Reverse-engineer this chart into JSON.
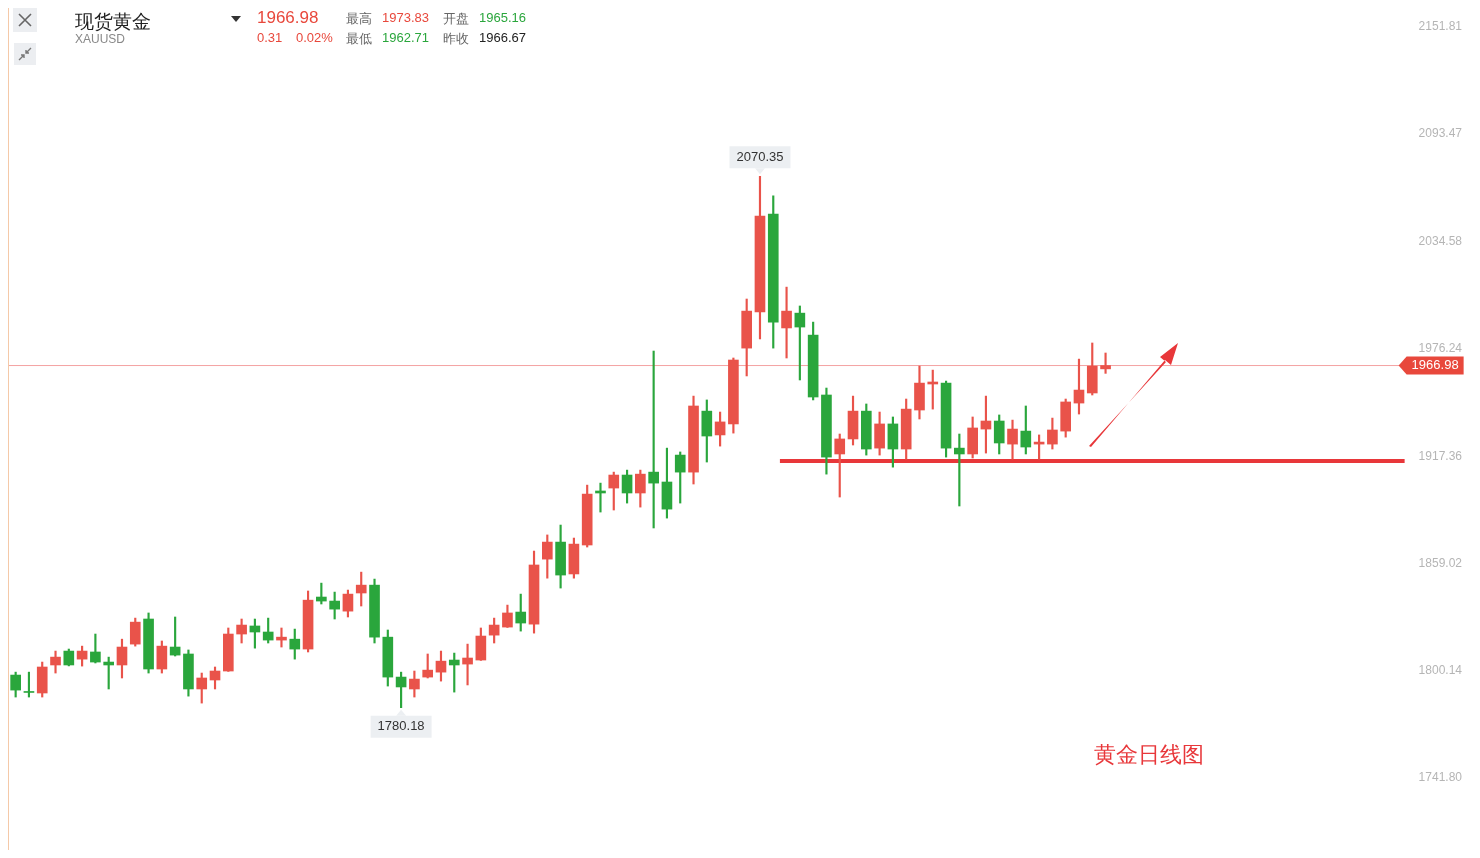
{
  "chart_data": {
    "type": "candlestick",
    "title": "现货黄金",
    "subtitle": "XAUUSD",
    "categories": [
      null,
      null,
      null,
      null,
      null,
      null,
      null,
      null,
      null,
      null,
      null,
      null,
      null,
      null,
      null,
      null,
      null,
      null,
      null,
      null,
      null,
      null,
      null,
      null,
      null,
      null,
      null,
      null,
      null,
      null,
      null,
      null,
      null,
      null,
      null,
      null,
      null,
      null,
      null,
      null,
      null,
      null,
      null,
      null,
      null,
      null,
      null,
      null,
      null,
      null,
      null,
      null,
      null,
      null,
      null,
      null,
      null,
      null,
      null,
      null,
      null,
      null,
      null,
      null,
      null,
      null,
      null,
      null,
      null,
      null,
      null,
      null,
      null,
      null,
      null,
      null,
      null,
      null,
      null,
      null,
      null,
      null,
      null,
      null,
      null,
      null,
      null,
      null,
      null,
      null,
      null,
      null,
      null,
      null,
      null,
      null,
      null,
      null,
      null,
      null,
      null,
      null,
      null,
      null,
      null
    ],
    "ohlc": [
      [
        1798.0,
        1799.6,
        1786.0,
        1789.8
      ],
      [
        1788.9,
        1799.6,
        1786.0,
        1788.5
      ],
      [
        1788.2,
        1805.1,
        1786.0,
        1802.4
      ],
      [
        1803.5,
        1811.1,
        1799.1,
        1807.8
      ],
      [
        1811.1,
        1812.2,
        1803.0,
        1803.5
      ],
      [
        1806.7,
        1813.8,
        1802.9,
        1811.1
      ],
      [
        1810.6,
        1820.4,
        1804.6,
        1805.1
      ],
      [
        1805.1,
        1807.8,
        1790.4,
        1803.5
      ],
      [
        1803.5,
        1817.6,
        1796.4,
        1813.3
      ],
      [
        1814.9,
        1829.1,
        1813.8,
        1826.9
      ],
      [
        1828.6,
        1831.9,
        1799.1,
        1801.3
      ],
      [
        1801.3,
        1816.6,
        1799.1,
        1813.8
      ],
      [
        1813.3,
        1829.7,
        1808.4,
        1808.9
      ],
      [
        1809.5,
        1811.7,
        1786.5,
        1790.4
      ],
      [
        1790.4,
        1799.1,
        1782.7,
        1796.4
      ],
      [
        1795.3,
        1802.4,
        1790.4,
        1800.2
      ],
      [
        1800.2,
        1823.7,
        1800.0,
        1820.4
      ],
      [
        1820.4,
        1828.6,
        1815.5,
        1825.3
      ],
      [
        1824.8,
        1828.6,
        1812.7,
        1821.5
      ],
      [
        1821.5,
        1829.1,
        1815.5,
        1817.1
      ],
      [
        1817.1,
        1823.7,
        1813.3,
        1818.7
      ],
      [
        1817.6,
        1823.1,
        1806.7,
        1812.2
      ],
      [
        1812.2,
        1843.9,
        1810.6,
        1838.9
      ],
      [
        1840.6,
        1848.2,
        1836.8,
        1838.4
      ],
      [
        1838.4,
        1843.3,
        1828.6,
        1834.0
      ],
      [
        1832.9,
        1844.4,
        1829.7,
        1842.2
      ],
      [
        1842.8,
        1854.2,
        1835.7,
        1847.1
      ],
      [
        1847.1,
        1850.4,
        1815.5,
        1818.7
      ],
      [
        1818.7,
        1822.6,
        1792.0,
        1796.9
      ],
      [
        1796.9,
        1799.6,
        1780.18,
        1791.5
      ],
      [
        1790.4,
        1800.2,
        1786.0,
        1795.8
      ],
      [
        1796.9,
        1809.5,
        1796.4,
        1800.7
      ],
      [
        1799.6,
        1811.1,
        1794.7,
        1805.6
      ],
      [
        1806.2,
        1810.0,
        1788.7,
        1803.5
      ],
      [
        1804.0,
        1814.9,
        1792.6,
        1807.3
      ],
      [
        1806.2,
        1823.7,
        1806.0,
        1819.3
      ],
      [
        1819.8,
        1829.1,
        1815.5,
        1825.3
      ],
      [
        1824.2,
        1836.2,
        1824.0,
        1831.9
      ],
      [
        1832.4,
        1842.2,
        1822.0,
        1826.4
      ],
      [
        1825.8,
        1865.7,
        1820.9,
        1858.1
      ],
      [
        1861.3,
        1874.5,
        1850.9,
        1870.6
      ],
      [
        1870.6,
        1879.9,
        1845.5,
        1852.6
      ],
      [
        1853.2,
        1872.8,
        1850.9,
        1869.5
      ],
      [
        1869.0,
        1901.7,
        1867.9,
        1896.8
      ],
      [
        1898.5,
        1902.8,
        1887.0,
        1897.4
      ],
      [
        1900.1,
        1908.8,
        1888.1,
        1907.2
      ],
      [
        1907.2,
        1909.9,
        1891.9,
        1897.4
      ],
      [
        1897.4,
        1909.9,
        1889.7,
        1907.7
      ],
      [
        1908.8,
        1974.9,
        1878.3,
        1902.8
      ],
      [
        1903.4,
        1921.9,
        1883.7,
        1888.6
      ],
      [
        1918.1,
        1919.8,
        1891.9,
        1908.8
      ],
      [
        1908.8,
        1950.3,
        1902.3,
        1944.9
      ],
      [
        1942.1,
        1948.2,
        1914.3,
        1928.5
      ],
      [
        1929.1,
        1941.6,
        1923.0,
        1936.2
      ],
      [
        1935.1,
        1971.1,
        1930.1,
        1970.0
      ],
      [
        1976.5,
        2003.3,
        1961.3,
        1996.7
      ],
      [
        1996.2,
        2070.35,
        1981.5,
        2048.6
      ],
      [
        2049.7,
        2059.6,
        1976.5,
        1990.7
      ],
      [
        1987.5,
        2009.8,
        1971.1,
        1996.7
      ],
      [
        1995.6,
        1999.5,
        1959.1,
        1988.0
      ],
      [
        1983.6,
        1990.7,
        1948.2,
        1949.8
      ],
      [
        1950.9,
        1954.7,
        1907.7,
        1917.0
      ],
      [
        1918.7,
        1929.6,
        1895.2,
        1926.9
      ],
      [
        1926.9,
        1950.3,
        1923.6,
        1942.1
      ],
      [
        1942.1,
        1946.0,
        1918.1,
        1921.4
      ],
      [
        1921.9,
        1941.6,
        1918.1,
        1935.1
      ],
      [
        1935.1,
        1938.9,
        1911.5,
        1921.4
      ],
      [
        1921.4,
        1948.7,
        1915.9,
        1943.2
      ],
      [
        1942.7,
        1966.7,
        1937.8,
        1957.4
      ],
      [
        1956.9,
        1964.5,
        1943.2,
        1958.0
      ],
      [
        1957.4,
        1958.5,
        1917.0,
        1921.9
      ],
      [
        1921.9,
        1929.6,
        1890.3,
        1918.7
      ],
      [
        1918.7,
        1938.9,
        1916.5,
        1932.9
      ],
      [
        1932.3,
        1950.3,
        1919.2,
        1936.7
      ],
      [
        1936.7,
        1940.0,
        1918.7,
        1924.7
      ],
      [
        1924.1,
        1937.2,
        1915.9,
        1932.3
      ],
      [
        1931.2,
        1944.9,
        1918.7,
        1922.5
      ],
      [
        1924.1,
        1929.1,
        1915.9,
        1925.2
      ],
      [
        1924.1,
        1938.3,
        1921.4,
        1931.8
      ],
      [
        1931.2,
        1948.7,
        1927.9,
        1947.1
      ],
      [
        1946.5,
        1970.5,
        1940.5,
        1953.6
      ],
      [
        1952.0,
        1979.3,
        1950.9,
        1966.67
      ],
      [
        1965.16,
        1973.83,
        1962.71,
        1966.98
      ],
      null,
      null,
      null,
      null,
      null,
      null,
      null,
      null,
      null,
      null,
      null,
      null,
      null,
      null,
      null,
      null,
      null,
      null,
      null,
      null,
      null,
      null
    ],
    "ylim": [
      1741.8,
      2151.81
    ],
    "yticks": [
      {
        "value": 1741.8,
        "label": "1741.80"
      },
      {
        "value": 1800.14,
        "label": "1800.14"
      },
      {
        "value": 1859.02,
        "label": "1859.02"
      },
      {
        "value": 1917.36,
        "label": "1917.36"
      },
      {
        "value": 1976.24,
        "label": "1976.24"
      },
      {
        "value": 2034.58,
        "label": "2034.58"
      },
      {
        "value": 2093.47,
        "label": "2093.47"
      },
      {
        "value": 2151.81,
        "label": "2151.81"
      }
    ],
    "tick_labels": "y",
    "grid": false,
    "legend": false,
    "ref_lines": [
      {
        "axis": "y",
        "value": 1966.98,
        "label": "1966.98",
        "color": "#f4a3a3"
      },
      {
        "axis": "y",
        "value": 1914.8,
        "color": "#e8373a"
      }
    ],
    "annotations": [
      "1966.98",
      "0.31",
      "0.02%",
      "最高",
      "1973.83",
      "开盘",
      "1965.16",
      "最低",
      "1962.71",
      "昨收",
      "1966.67",
      "黄金日线图",
      "2070.35",
      "1780.18"
    ]
  }
}
